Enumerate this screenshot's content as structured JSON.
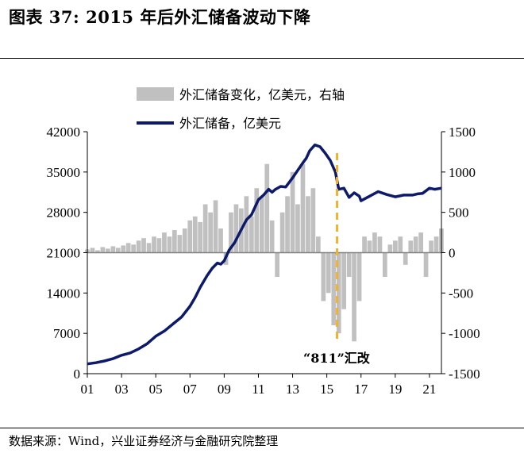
{
  "title": "图表 37:  2015 年后外汇储备波动下降",
  "source": "数据来源：Wind，兴业证券经济与金融研究院整理",
  "chart_data": {
    "type": "line+bar",
    "x_ticks": [
      "01",
      "03",
      "05",
      "07",
      "09",
      "11",
      "13",
      "15",
      "17",
      "19",
      "21"
    ],
    "x_range": [
      2001.0,
      2021.7
    ],
    "left_axis": {
      "ticks": [
        "0",
        "7000",
        "14000",
        "21000",
        "28000",
        "35000",
        "42000"
      ],
      "ylim": [
        0,
        42000
      ]
    },
    "right_axis": {
      "ticks": [
        "-1500",
        "-1000",
        "-500",
        "0",
        "500",
        "1000",
        "1500"
      ],
      "ylim": [
        -1500,
        1500
      ]
    },
    "legend": {
      "bar_label": "外汇储备变化，亿美元，右轴",
      "line_label": "外汇储备，亿美元"
    },
    "annotation": {
      "text": "“811”汇改",
      "x": 2015.6
    },
    "colors": {
      "line": "#0d1a6b",
      "bar": "#c0c0c0",
      "annotation": "#f2b12c"
    },
    "reserves_line": {
      "name": "外汇储备，亿美元",
      "x": [
        2001.0,
        2001.5,
        2002.0,
        2002.5,
        2003.0,
        2003.5,
        2004.0,
        2004.5,
        2005.0,
        2005.5,
        2006.0,
        2006.5,
        2007.0,
        2007.3,
        2007.6,
        2008.0,
        2008.3,
        2008.6,
        2008.8,
        2009.0,
        2009.3,
        2009.6,
        2010.0,
        2010.3,
        2010.6,
        2011.0,
        2011.3,
        2011.6,
        2011.8,
        2012.0,
        2012.3,
        2012.6,
        2013.0,
        2013.3,
        2013.6,
        2013.8,
        2014.0,
        2014.3,
        2014.6,
        2014.9,
        2015.2,
        2015.5,
        2015.7,
        2016.0,
        2016.3,
        2016.6,
        2016.9,
        2017.0,
        2017.5,
        2018.0,
        2018.5,
        2019.0,
        2019.5,
        2020.0,
        2020.3,
        2020.6,
        2021.0,
        2021.3,
        2021.7
      ],
      "values": [
        1700,
        1900,
        2200,
        2600,
        3200,
        3600,
        4300,
        5200,
        6500,
        7400,
        8600,
        9800,
        11700,
        13200,
        15000,
        17000,
        18300,
        19200,
        19000,
        19600,
        21500,
        22700,
        25000,
        26700,
        27600,
        30200,
        31000,
        32000,
        31500,
        32000,
        32500,
        32400,
        34000,
        35300,
        36600,
        37400,
        38700,
        39700,
        39400,
        38300,
        37000,
        35000,
        32000,
        32200,
        30600,
        31400,
        30800,
        30000,
        30800,
        31600,
        31100,
        30700,
        31000,
        31000,
        31200,
        31300,
        32200,
        32000,
        32200
      ]
    },
    "change_bars": {
      "name": "外汇储备变化，亿美元，右轴",
      "x": [
        2001.0,
        2001.3,
        2001.6,
        2001.9,
        2002.2,
        2002.5,
        2002.8,
        2003.1,
        2003.4,
        2003.7,
        2004.0,
        2004.3,
        2004.6,
        2004.9,
        2005.2,
        2005.5,
        2005.8,
        2006.1,
        2006.4,
        2006.7,
        2007.0,
        2007.3,
        2007.6,
        2007.9,
        2008.2,
        2008.5,
        2008.8,
        2009.1,
        2009.4,
        2009.7,
        2010.0,
        2010.3,
        2010.6,
        2010.9,
        2011.2,
        2011.5,
        2011.8,
        2012.1,
        2012.4,
        2012.7,
        2013.0,
        2013.3,
        2013.6,
        2013.9,
        2014.2,
        2014.5,
        2014.8,
        2015.1,
        2015.4,
        2015.7,
        2016.0,
        2016.3,
        2016.6,
        2016.9,
        2017.2,
        2017.5,
        2017.8,
        2018.1,
        2018.4,
        2018.7,
        2019.0,
        2019.3,
        2019.6,
        2019.9,
        2020.2,
        2020.5,
        2020.8,
        2021.1,
        2021.4,
        2021.7
      ],
      "values": [
        40,
        60,
        30,
        70,
        50,
        80,
        60,
        90,
        120,
        100,
        150,
        180,
        120,
        200,
        180,
        250,
        200,
        280,
        220,
        300,
        400,
        450,
        380,
        600,
        500,
        650,
        300,
        -150,
        500,
        600,
        550,
        700,
        450,
        800,
        700,
        1100,
        400,
        -300,
        500,
        700,
        1000,
        600,
        1100,
        700,
        800,
        200,
        -600,
        -500,
        -900,
        -1000,
        -700,
        -300,
        -1100,
        -600,
        200,
        150,
        250,
        200,
        -300,
        100,
        150,
        200,
        -150,
        150,
        200,
        250,
        -300,
        150,
        200,
        300
      ]
    }
  }
}
